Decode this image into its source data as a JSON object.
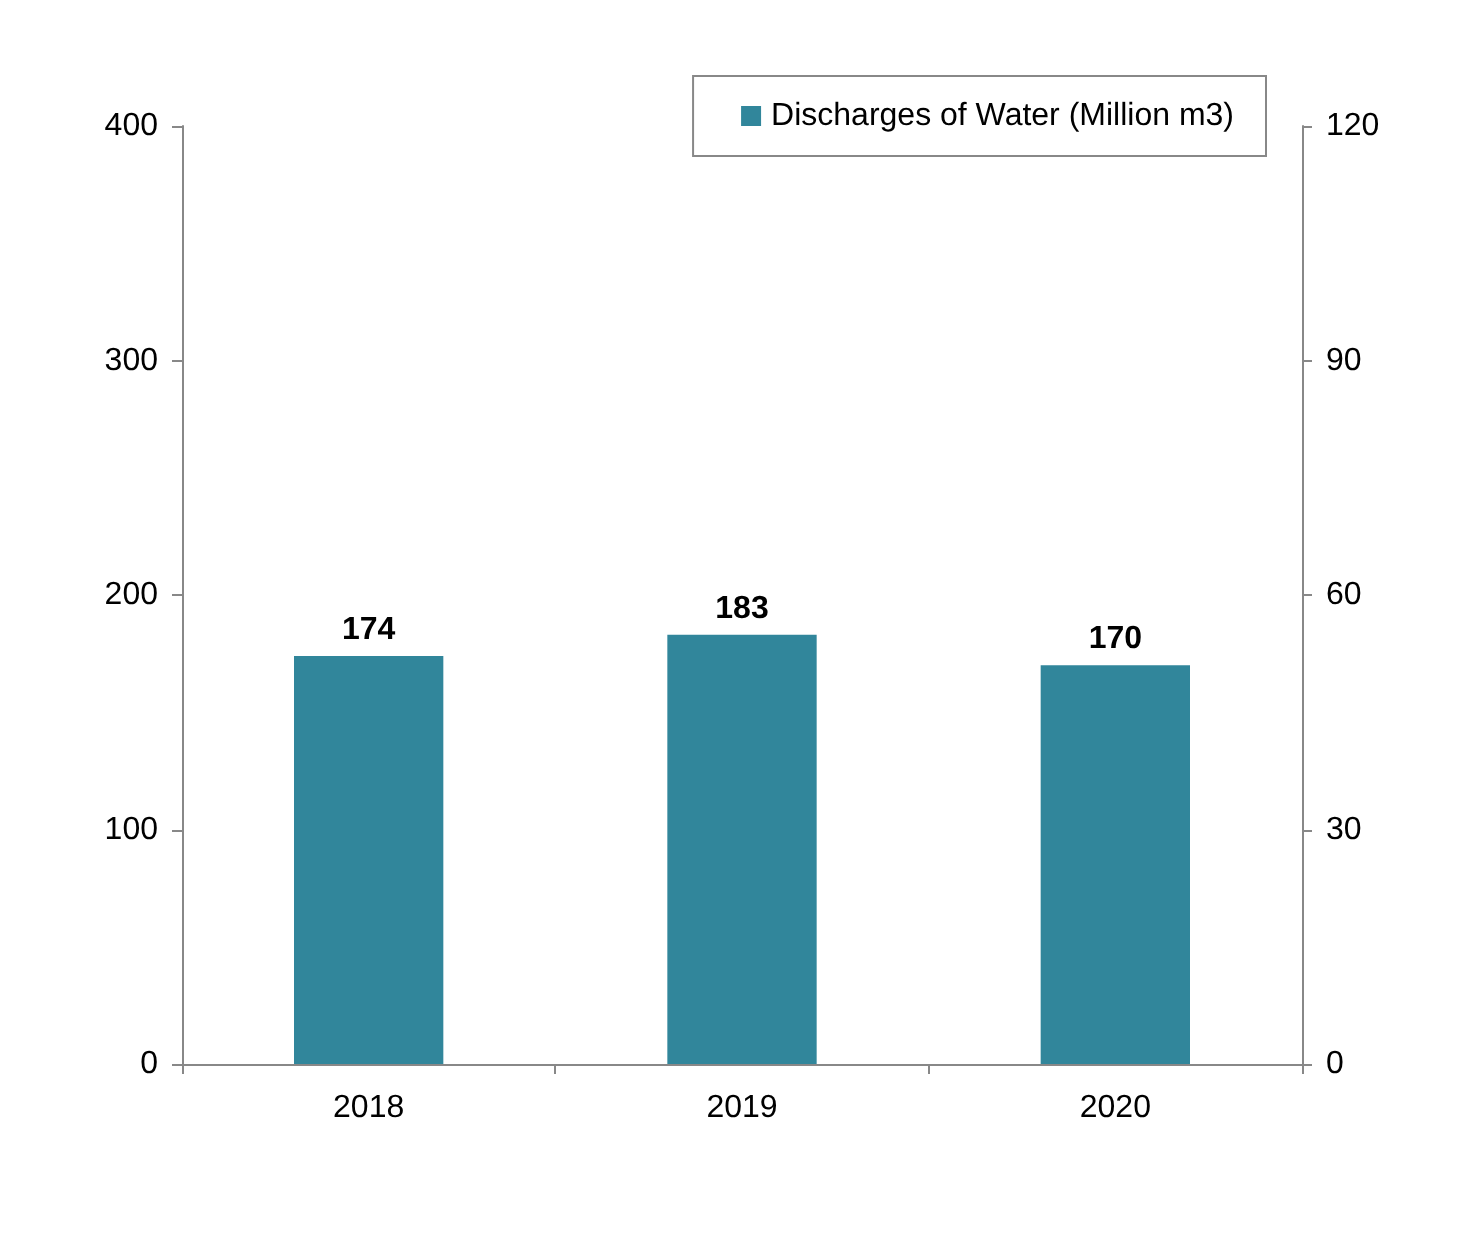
{
  "chart_data": {
    "type": "bar",
    "categories": [
      "2018",
      "2019",
      "2020"
    ],
    "series": [
      {
        "name": "Discharges of Water (Million m3)",
        "color": "#31869b",
        "values": [
          174,
          183,
          170
        ]
      }
    ],
    "ylim": [
      0,
      400
    ],
    "yticks": [
      0,
      100,
      200,
      300,
      400
    ],
    "y2lim": [
      0,
      120
    ],
    "y2ticks": [
      0,
      30,
      60,
      90,
      120
    ],
    "data_labels": true,
    "grid": false,
    "legend": "top right"
  }
}
